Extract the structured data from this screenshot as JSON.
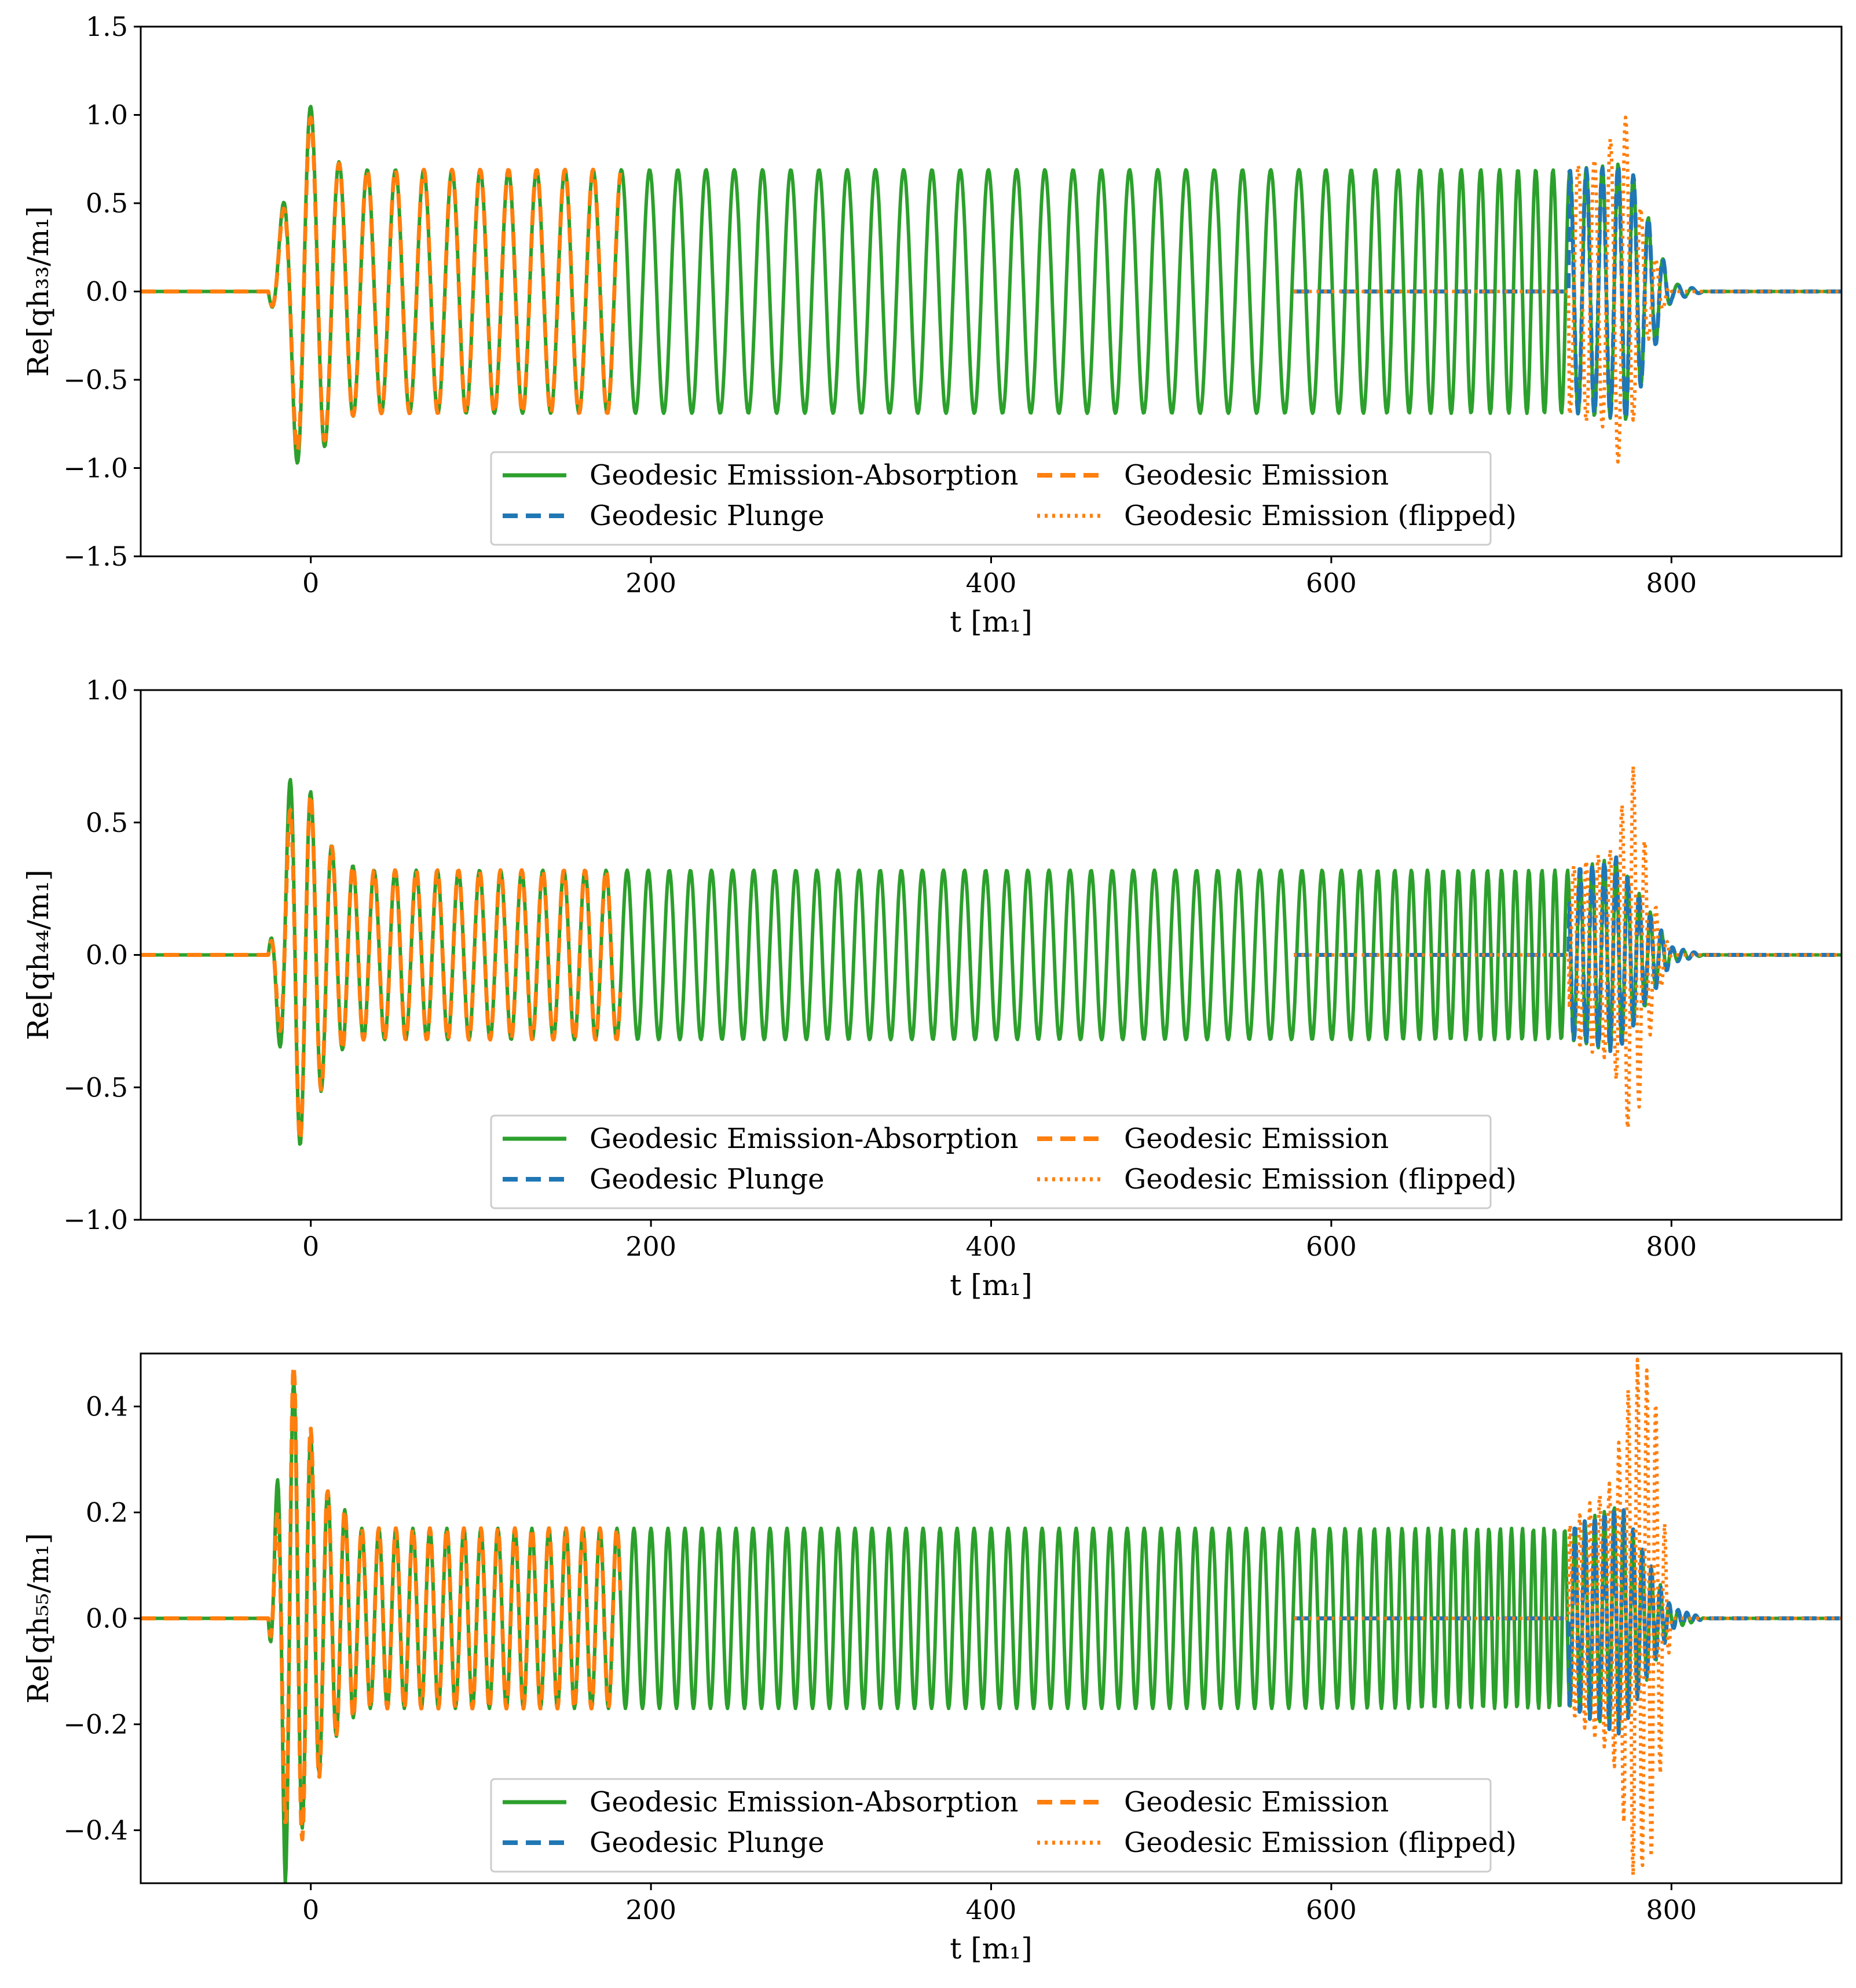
{
  "chart_data": [
    {
      "type": "line",
      "ylabel": "Re[qh₃₃/m₁]",
      "xlabel": "t [m₁]",
      "xlim": [
        -100,
        900
      ],
      "ylim": [
        -1.5,
        1.5
      ],
      "xticks": [
        "0",
        "200",
        "400",
        "600",
        "800"
      ],
      "yticks": [
        "1.5",
        "1.0",
        "0.5",
        "0.0",
        "−0.5",
        "−1.0",
        "−1.5"
      ],
      "ytick_values": [
        1.5,
        1.0,
        0.5,
        0.0,
        -0.5,
        -1.0,
        -1.5
      ],
      "legend": {
        "placement": "lower center",
        "entries": [
          "Geodesic Emission-Absorption",
          "Geodesic Plunge",
          "Geodesic Emission",
          "Geodesic Emission (flipped)"
        ]
      },
      "series": [
        {
          "name": "Geodesic Emission-Absorption",
          "style": "solid",
          "color": "#2ca02c",
          "x_range": [
            -100,
            900
          ],
          "onset": -25,
          "burst_peak": 1.15,
          "chirp_end": 778,
          "peak_start_growth": 740,
          "peak_max": 0.73,
          "x": [
            -100,
            -25,
            -5,
            15,
            30,
            180,
            400,
            578,
            740,
            775,
            800,
            820,
            900
          ],
          "amplitude": [
            0,
            0,
            1.15,
            0.74,
            0.69,
            0.69,
            0.69,
            0.69,
            0.69,
            0.73,
            0.05,
            0.0,
            0.0
          ]
        },
        {
          "name": "Geodesic Plunge",
          "style": "dashed",
          "color": "#1f77b4",
          "x_range": [
            578,
            900
          ],
          "x": [
            578,
            740,
            760,
            775,
            800,
            820,
            900
          ],
          "amplitude": [
            0.69,
            0.69,
            0.7,
            0.73,
            0.05,
            0.0,
            0.0
          ]
        },
        {
          "name": "Geodesic Emission",
          "style": "dashed",
          "color": "#ff7f0e",
          "x_range": [
            -100,
            182
          ],
          "x": [
            -100,
            -25,
            -5,
            15,
            30,
            182
          ],
          "amplitude": [
            0,
            0,
            1.07,
            0.73,
            0.69,
            0.69
          ]
        },
        {
          "name": "Geodesic Emission (flipped)",
          "style": "dotted",
          "color": "#ff7f0e",
          "x_range": [
            578,
            900
          ],
          "x": [
            578,
            740,
            760,
            772,
            785,
            800,
            900
          ],
          "amplitude": [
            0.69,
            0.7,
            0.77,
            1.05,
            0.3,
            0.0,
            0.0
          ]
        }
      ],
      "waveform": {
        "period_mid": 16.6,
        "period_end": 8.5,
        "chirp_start": 578
      }
    },
    {
      "type": "line",
      "ylabel": "Re[qh₄₄/m₁]",
      "xlabel": "t [m₁]",
      "xlim": [
        -100,
        900
      ],
      "ylim": [
        -1.0,
        1.0
      ],
      "xticks": [
        "0",
        "200",
        "400",
        "600",
        "800"
      ],
      "yticks": [
        "1.0",
        "0.5",
        "0.0",
        "−0.5",
        "−1.0"
      ],
      "ytick_values": [
        1.0,
        0.5,
        0.0,
        -0.5,
        -1.0
      ],
      "legend": {
        "placement": "lower center",
        "entries": [
          "Geodesic Emission-Absorption",
          "Geodesic Plunge",
          "Geodesic Emission",
          "Geodesic Emission (flipped)"
        ]
      },
      "series": [
        {
          "name": "Geodesic Emission-Absorption",
          "style": "solid",
          "color": "#2ca02c",
          "x_range": [
            -100,
            900
          ],
          "x": [
            -100,
            -25,
            -10,
            15,
            30,
            180,
            400,
            578,
            740,
            768,
            800,
            820,
            900
          ],
          "amplitude": [
            0,
            0,
            0.78,
            0.37,
            0.32,
            0.32,
            0.32,
            0.32,
            0.32,
            0.37,
            0.03,
            0.0,
            0.0
          ]
        },
        {
          "name": "Geodesic Plunge",
          "style": "dashed",
          "color": "#1f77b4",
          "x_range": [
            578,
            900
          ],
          "x": [
            578,
            740,
            768,
            800,
            820,
            900
          ],
          "amplitude": [
            0.32,
            0.32,
            0.37,
            0.03,
            0.0,
            0.0
          ]
        },
        {
          "name": "Geodesic Emission",
          "style": "dashed",
          "color": "#ff7f0e",
          "x_range": [
            -100,
            182
          ],
          "x": [
            -100,
            -25,
            -8,
            15,
            30,
            182
          ],
          "amplitude": [
            0,
            0,
            0.73,
            0.37,
            0.32,
            0.32
          ]
        },
        {
          "name": "Geodesic Emission (flipped)",
          "style": "dotted",
          "color": "#ff7f0e",
          "x_range": [
            578,
            900
          ],
          "x": [
            578,
            740,
            765,
            777,
            790,
            800,
            900
          ],
          "amplitude": [
            0.32,
            0.33,
            0.4,
            0.74,
            0.2,
            0.0,
            0.0
          ]
        }
      ],
      "waveform": {
        "period_mid": 12.4,
        "period_end": 6.4,
        "chirp_start": 578
      }
    },
    {
      "type": "line",
      "ylabel": "Re[qh₅₅/m₁]",
      "xlabel": "t [m₁]",
      "xlim": [
        -100,
        900
      ],
      "ylim": [
        -0.5,
        0.5
      ],
      "xticks": [
        "0",
        "200",
        "400",
        "600",
        "800"
      ],
      "yticks": [
        "0.4",
        "0.2",
        "0.0",
        "−0.2",
        "−0.4"
      ],
      "ytick_values": [
        0.4,
        0.2,
        0.0,
        -0.2,
        -0.4
      ],
      "legend": {
        "placement": "lower center",
        "entries": [
          "Geodesic Emission-Absorption",
          "Geodesic Plunge",
          "Geodesic Emission",
          "Geodesic Emission (flipped)"
        ]
      },
      "series": [
        {
          "name": "Geodesic Emission-Absorption",
          "style": "solid",
          "color": "#2ca02c",
          "x_range": [
            -100,
            900
          ],
          "x": [
            -100,
            -25,
            -15,
            10,
            30,
            180,
            400,
            578,
            740,
            770,
            800,
            820,
            900
          ],
          "amplitude": [
            0,
            0,
            0.5,
            0.24,
            0.17,
            0.17,
            0.17,
            0.17,
            0.17,
            0.22,
            0.02,
            0.0,
            0.0
          ]
        },
        {
          "name": "Geodesic Plunge",
          "style": "dashed",
          "color": "#1f77b4",
          "x_range": [
            578,
            900
          ],
          "x": [
            578,
            740,
            770,
            800,
            820,
            900
          ],
          "amplitude": [
            0.17,
            0.17,
            0.22,
            0.02,
            0.0,
            0.0
          ]
        },
        {
          "name": "Geodesic Emission",
          "style": "dashed",
          "color": "#ff7f0e",
          "x_range": [
            -100,
            182
          ],
          "x": [
            -100,
            -25,
            -12,
            10,
            30,
            182
          ],
          "amplitude": [
            0,
            0,
            0.5,
            0.24,
            0.17,
            0.17
          ]
        },
        {
          "name": "Geodesic Emission (flipped)",
          "style": "dotted",
          "color": "#ff7f0e",
          "x_range": [
            578,
            900
          ],
          "x": [
            578,
            740,
            765,
            778,
            790,
            800,
            900
          ],
          "amplitude": [
            0.17,
            0.18,
            0.26,
            0.5,
            0.45,
            0.0,
            0.0
          ]
        }
      ],
      "waveform": {
        "period_mid": 10.0,
        "period_end": 5.2,
        "chirp_start": 578
      }
    }
  ]
}
